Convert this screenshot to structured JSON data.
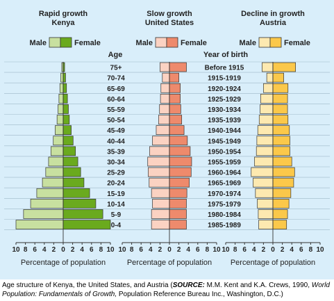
{
  "figure": {
    "age_label": "Age",
    "year_label": "Year of birth"
  },
  "chart_data": [
    {
      "type": "bar",
      "title": "Rapid growth",
      "subtitle": "Kenya",
      "legend": [
        "Male",
        "Female"
      ],
      "xlabel": "Percentage of population",
      "xlim": [
        -10,
        10
      ],
      "xticks": [
        "10",
        "8",
        "6",
        "4",
        "2",
        "0",
        "2",
        "4",
        "6",
        "8",
        "10"
      ],
      "categories": [
        "75+",
        "70-74",
        "65-69",
        "60-64",
        "55-59",
        "50-54",
        "45-49",
        "40-44",
        "35-39",
        "30-34",
        "25-29",
        "20-24",
        "15-19",
        "10-14",
        "5-9",
        "0-4"
      ],
      "series": [
        {
          "name": "Male",
          "values": [
            0.3,
            0.5,
            0.7,
            0.9,
            1.1,
            1.3,
            1.7,
            2.1,
            2.6,
            3.1,
            3.7,
            4.4,
            5.6,
            6.9,
            8.4,
            10.0
          ],
          "color": "#c8e0a0"
        },
        {
          "name": "Female",
          "values": [
            0.3,
            0.5,
            0.7,
            0.9,
            1.1,
            1.3,
            1.7,
            2.1,
            2.6,
            3.1,
            3.7,
            4.4,
            5.6,
            6.9,
            8.4,
            10.0
          ],
          "color": "#6aaa1e"
        }
      ]
    },
    {
      "type": "bar",
      "title": "Slow growth",
      "subtitle": "United States",
      "legend": [
        "Male",
        "Female"
      ],
      "xlabel": "Percentage of population",
      "xlim": [
        -10,
        10
      ],
      "xticks": [
        "10",
        "8",
        "6",
        "4",
        "2",
        "0",
        "2",
        "4",
        "6",
        "8",
        "10"
      ],
      "categories": [
        "75+",
        "70-74",
        "65-69",
        "60-64",
        "55-59",
        "50-54",
        "45-49",
        "40-44",
        "35-39",
        "30-34",
        "25-29",
        "20-24",
        "15-19",
        "10-14",
        "5-9",
        "0-4"
      ],
      "years": [
        "Before 1915",
        "1915-1919",
        "1920-1924",
        "1925-1929",
        "1930-1934",
        "1935-1939",
        "1940-1944",
        "1945-1949",
        "1950-1954",
        "1955-1959",
        "1960-1964",
        "1965-1969",
        "1970-1974",
        "1975-1979",
        "1980-1984",
        "1985-1989"
      ],
      "series": [
        {
          "name": "Male",
          "values": [
            2.0,
            1.5,
            1.8,
            1.9,
            2.1,
            2.3,
            2.8,
            3.6,
            4.2,
            4.6,
            4.5,
            4.3,
            3.8,
            3.6,
            3.8,
            3.8
          ],
          "color": "#fbd2c2"
        },
        {
          "name": "Female",
          "values": [
            3.6,
            2.0,
            2.3,
            2.3,
            2.4,
            2.6,
            3.1,
            3.8,
            4.4,
            4.7,
            4.6,
            4.2,
            3.7,
            3.6,
            3.6,
            3.6
          ],
          "color": "#ee8a6c"
        }
      ]
    },
    {
      "type": "bar",
      "title": "Decline in growth",
      "subtitle": "Austria",
      "legend": [
        "Male",
        "Female"
      ],
      "xlabel": "Percentage of population",
      "xlim": [
        -10,
        10
      ],
      "xticks": [
        "10",
        "8",
        "6",
        "4",
        "2",
        "0",
        "2",
        "4",
        "6",
        "8",
        "10"
      ],
      "categories": [
        "75+",
        "70-74",
        "65-69",
        "60-64",
        "55-59",
        "50-54",
        "45-49",
        "40-44",
        "35-39",
        "30-34",
        "25-29",
        "20-24",
        "15-19",
        "10-14",
        "5-9",
        "0-4"
      ],
      "series": [
        {
          "name": "Male",
          "values": [
            2.3,
            1.3,
            2.0,
            2.6,
            2.7,
            2.9,
            3.2,
            3.4,
            3.5,
            3.9,
            4.6,
            4.2,
            3.7,
            3.3,
            3.1,
            3.0
          ],
          "color": "#fde9b0"
        },
        {
          "name": "Female",
          "values": [
            4.8,
            2.3,
            3.2,
            3.1,
            3.1,
            3.2,
            3.5,
            3.6,
            3.6,
            4.0,
            4.6,
            4.4,
            3.8,
            3.4,
            3.1,
            2.9
          ],
          "color": "#fbc84a"
        }
      ]
    }
  ],
  "caption": {
    "part1": "Age structure of Kenya, the United States, and Austria (",
    "source_label": "SOURCE:",
    "part2": " M.M. Kent and K.A. Crews, 1990, ",
    "book_title": "World Population: Fundamentals of Growth,",
    "part3": " Population Reference Bureau Inc., Washington, D.C.)"
  }
}
